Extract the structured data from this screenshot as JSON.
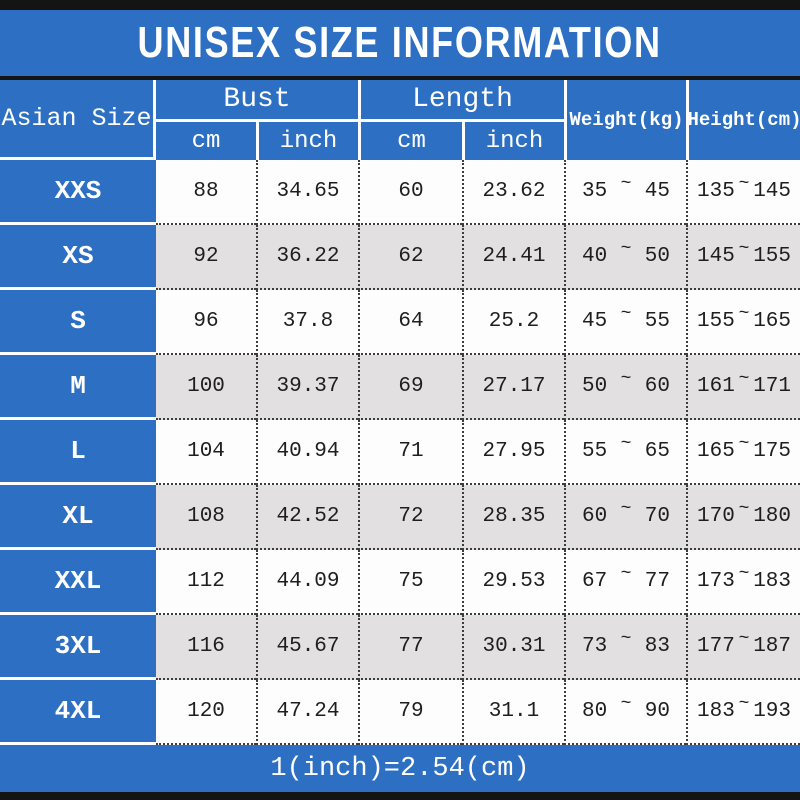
{
  "title": "UNISEX SIZE INFORMATION",
  "conversion_note": "1(inch)=2.54(cm)",
  "colors": {
    "accent_blue": "#2d6fc3",
    "alt_row_gray": "#e2e0e0",
    "frame_black": "#141414"
  },
  "table": {
    "corner_header": "Asian Size",
    "group_headers": {
      "bust": "Bust",
      "length": "Length"
    },
    "sub_headers": {
      "bust_cm": "cm",
      "bust_inch": "inch",
      "length_cm": "cm",
      "length_inch": "inch"
    },
    "range_headers": {
      "weight": "Weight(kg)",
      "height": "Height(cm)"
    },
    "tilde": "~",
    "rows": [
      {
        "size": "XXS",
        "bust_cm": "88",
        "bust_inch": "34.65",
        "length_cm": "60",
        "length_inch": "23.62",
        "weight_min": "35",
        "weight_max": "45",
        "height_min": "135",
        "height_max": "145"
      },
      {
        "size": "XS",
        "bust_cm": "92",
        "bust_inch": "36.22",
        "length_cm": "62",
        "length_inch": "24.41",
        "weight_min": "40",
        "weight_max": "50",
        "height_min": "145",
        "height_max": "155"
      },
      {
        "size": "S",
        "bust_cm": "96",
        "bust_inch": "37.8",
        "length_cm": "64",
        "length_inch": "25.2",
        "weight_min": "45",
        "weight_max": "55",
        "height_min": "155",
        "height_max": "165"
      },
      {
        "size": "M",
        "bust_cm": "100",
        "bust_inch": "39.37",
        "length_cm": "69",
        "length_inch": "27.17",
        "weight_min": "50",
        "weight_max": "60",
        "height_min": "161",
        "height_max": "171"
      },
      {
        "size": "L",
        "bust_cm": "104",
        "bust_inch": "40.94",
        "length_cm": "71",
        "length_inch": "27.95",
        "weight_min": "55",
        "weight_max": "65",
        "height_min": "165",
        "height_max": "175"
      },
      {
        "size": "XL",
        "bust_cm": "108",
        "bust_inch": "42.52",
        "length_cm": "72",
        "length_inch": "28.35",
        "weight_min": "60",
        "weight_max": "70",
        "height_min": "170",
        "height_max": "180"
      },
      {
        "size": "XXL",
        "bust_cm": "112",
        "bust_inch": "44.09",
        "length_cm": "75",
        "length_inch": "29.53",
        "weight_min": "67",
        "weight_max": "77",
        "height_min": "173",
        "height_max": "183"
      },
      {
        "size": "3XL",
        "bust_cm": "116",
        "bust_inch": "45.67",
        "length_cm": "77",
        "length_inch": "30.31",
        "weight_min": "73",
        "weight_max": "83",
        "height_min": "177",
        "height_max": "187"
      },
      {
        "size": "4XL",
        "bust_cm": "120",
        "bust_inch": "47.24",
        "length_cm": "79",
        "length_inch": "31.1",
        "weight_min": "80",
        "weight_max": "90",
        "height_min": "183",
        "height_max": "193"
      }
    ]
  }
}
